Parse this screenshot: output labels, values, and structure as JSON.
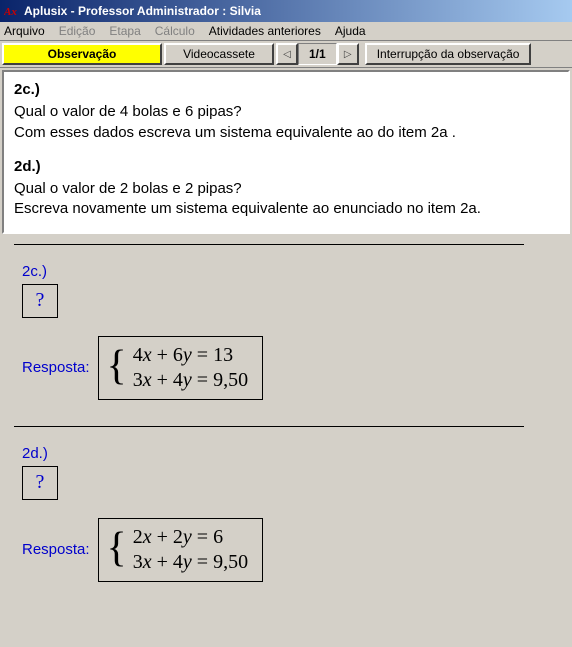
{
  "window": {
    "title": "Aplusix - Professor Administrador : Silvia",
    "icon_label": "Ax",
    "icon_color": "#cc0000"
  },
  "menu": {
    "arquivo": "Arquivo",
    "edicao": "Edição",
    "etapa": "Etapa",
    "calculo": "Cálculo",
    "anteriores": "Atividades anteriores",
    "ajuda": "Ajuda"
  },
  "toolbar": {
    "observacao": "Observação",
    "videocassete": "Videocassete",
    "page": "1/1",
    "interrupcao": "Interrupção da observação",
    "prev_glyph": "◁",
    "next_glyph": "▷"
  },
  "question": {
    "c_head": "2c.)",
    "c_line1": "Qual o valor de 4 bolas e 6 pipas?",
    "c_line2": "Com esses dados escreva um sistema equivalente ao do item 2a .",
    "d_head": "2d.)",
    "d_line1": "Qual o valor de 2 bolas e 2 pipas?",
    "d_line2": "Escreva novamente um sistema equivalente ao enunciado no item 2a."
  },
  "work": {
    "qmark": "?",
    "resposta": "Resposta:",
    "part_c": {
      "label": "2c.)",
      "equations": {
        "eq1": {
          "a": "4",
          "b": "6",
          "rhs": "13"
        },
        "eq2": {
          "a": "3",
          "b": "4",
          "rhs": "9,50"
        }
      }
    },
    "part_d": {
      "label": "2d.)",
      "equations": {
        "eq1": {
          "a": "2",
          "b": "2",
          "rhs": "6"
        },
        "eq2": {
          "a": "3",
          "b": "4",
          "rhs": "9,50"
        }
      }
    }
  },
  "colors": {
    "titlebar_start": "#0a246a",
    "titlebar_end": "#a6caf0",
    "background": "#d4d0c8",
    "accent_yellow": "#ffff00",
    "link_blue": "#0000cc"
  }
}
